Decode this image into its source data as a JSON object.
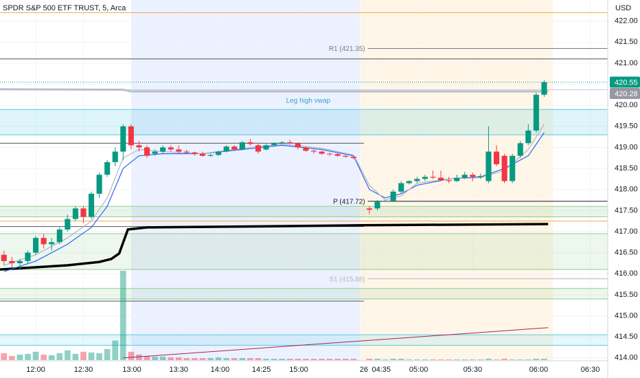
{
  "chart_data": {
    "type": "candlestick",
    "title": "SPDR S&P 500 ETF TRUST, 5, Arca",
    "currency": "USD",
    "xlim": [
      -0.5,
      76
    ],
    "ylim": [
      413.85,
      422.5
    ],
    "xticks": [
      {
        "value": 4,
        "label": "12:00"
      },
      {
        "value": 10,
        "label": "12:30"
      },
      {
        "value": 16.1,
        "label": "13:00"
      },
      {
        "value": 22,
        "label": "13:30"
      },
      {
        "value": 27.2,
        "label": "14:00"
      },
      {
        "value": 32.4,
        "label": "14:25"
      },
      {
        "value": 37.1,
        "label": "15:00"
      },
      {
        "value": 45.3,
        "label": "26"
      },
      {
        "value": 47.5,
        "label": "04:35"
      },
      {
        "value": 52.2,
        "label": "05:00"
      },
      {
        "value": 59,
        "label": "05:30"
      },
      {
        "value": 67.3,
        "label": "06:00"
      },
      {
        "value": 73.8,
        "label": "06:30"
      }
    ],
    "yticks": [
      {
        "value": 414,
        "label": "414.00"
      },
      {
        "value": 414.5,
        "label": "414.50"
      },
      {
        "value": 415,
        "label": "415.00"
      },
      {
        "value": 415.5,
        "label": "415.50"
      },
      {
        "value": 416,
        "label": "416.00"
      },
      {
        "value": 416.5,
        "label": "416.50"
      },
      {
        "value": 417,
        "label": "417.00"
      },
      {
        "value": 417.5,
        "label": "417.50"
      },
      {
        "value": 418,
        "label": "418.00"
      },
      {
        "value": 418.5,
        "label": "418.50"
      },
      {
        "value": 419,
        "label": "419.00"
      },
      {
        "value": 419.5,
        "label": "419.50"
      },
      {
        "value": 420,
        "label": "420.00"
      },
      {
        "value": 420.5,
        "label": "420.50"
      },
      {
        "value": 421,
        "label": "421.00"
      },
      {
        "value": 421.5,
        "label": "421.50"
      },
      {
        "value": 422,
        "label": "422.00"
      }
    ],
    "up_color": "#089981",
    "down_color": "#f23645",
    "x": [
      0,
      1,
      2,
      3,
      4,
      5,
      6,
      7,
      8,
      9,
      10,
      11,
      12,
      13,
      14,
      15,
      16,
      17,
      18,
      19,
      20,
      21,
      22,
      23,
      24,
      25,
      26,
      27,
      28,
      29,
      30,
      31,
      32,
      33,
      34,
      35,
      36,
      37,
      38,
      39,
      40,
      41,
      42,
      43,
      44,
      46,
      47,
      48,
      49,
      50,
      51,
      52,
      53,
      54,
      55,
      56,
      57,
      58,
      59,
      60,
      61,
      62,
      63,
      64,
      65,
      66,
      67,
      68
    ],
    "open": [
      416.45,
      416.3,
      416.25,
      416.3,
      416.5,
      416.85,
      416.7,
      416.75,
      417.05,
      417.3,
      417.55,
      417.35,
      417.9,
      418.35,
      418.65,
      418.9,
      419.5,
      419.05,
      419.0,
      418.85,
      418.9,
      419.0,
      418.95,
      418.9,
      418.88,
      418.85,
      418.8,
      418.82,
      418.9,
      419.02,
      418.95,
      419.12,
      419.05,
      418.95,
      419.05,
      419.1,
      419.12,
      419.1,
      419.0,
      418.92,
      418.9,
      418.85,
      418.84,
      418.8,
      418.78,
      417.55,
      417.55,
      417.72,
      417.72,
      417.95,
      418.15,
      418.2,
      418.25,
      418.3,
      418.28,
      418.22,
      418.2,
      418.28,
      418.35,
      418.3,
      418.2,
      418.9,
      418.8,
      418.2,
      418.8,
      419.1,
      419.4,
      420.25
    ],
    "high": [
      416.55,
      416.4,
      416.35,
      416.55,
      416.9,
      416.95,
      416.85,
      417.1,
      417.4,
      417.6,
      417.6,
      417.95,
      418.4,
      418.7,
      419.0,
      419.55,
      419.55,
      419.15,
      419.05,
      418.95,
      419.05,
      419.05,
      419.05,
      418.95,
      418.9,
      418.9,
      418.85,
      418.92,
      419.05,
      419.05,
      419.15,
      419.2,
      419.1,
      419.08,
      419.12,
      419.15,
      419.18,
      419.12,
      419.02,
      418.95,
      418.92,
      418.88,
      418.86,
      418.82,
      418.8,
      417.6,
      417.75,
      417.75,
      418.0,
      418.2,
      418.22,
      418.3,
      418.35,
      418.45,
      418.45,
      418.3,
      418.35,
      418.42,
      418.4,
      418.38,
      419.5,
      419.05,
      418.85,
      418.85,
      419.15,
      419.55,
      420.3,
      420.6
    ],
    "low": [
      416.2,
      416.15,
      416.1,
      416.25,
      416.45,
      416.6,
      416.55,
      416.7,
      417.0,
      417.25,
      417.2,
      417.3,
      417.8,
      418.3,
      418.55,
      418.7,
      418.95,
      418.9,
      418.75,
      418.8,
      418.85,
      418.9,
      418.85,
      418.85,
      418.8,
      418.78,
      418.78,
      418.8,
      418.88,
      418.92,
      418.93,
      419.05,
      418.85,
      418.93,
      419.02,
      419.08,
      419.08,
      418.95,
      418.9,
      418.85,
      418.82,
      418.8,
      418.78,
      418.75,
      418.72,
      417.42,
      417.5,
      417.7,
      417.7,
      417.9,
      418.12,
      418.15,
      418.2,
      418.25,
      418.2,
      418.15,
      418.18,
      418.25,
      418.2,
      418.25,
      418.15,
      418.55,
      418.15,
      418.15,
      418.75,
      419.05,
      419.35,
      420.2
    ],
    "close": [
      416.3,
      416.25,
      416.3,
      416.5,
      416.85,
      416.7,
      416.75,
      417.05,
      417.3,
      417.55,
      417.35,
      417.9,
      418.35,
      418.65,
      418.9,
      419.5,
      419.05,
      419.0,
      418.8,
      418.9,
      419.0,
      418.95,
      418.9,
      418.88,
      418.85,
      418.8,
      418.82,
      418.9,
      419.02,
      418.95,
      419.12,
      419.08,
      418.9,
      419.05,
      419.1,
      419.12,
      419.1,
      419.0,
      418.92,
      418.9,
      418.85,
      418.84,
      418.8,
      418.78,
      418.75,
      417.52,
      417.72,
      417.73,
      417.95,
      418.15,
      418.2,
      418.25,
      418.3,
      418.28,
      418.22,
      418.2,
      418.28,
      418.35,
      418.3,
      418.32,
      418.9,
      418.6,
      418.2,
      418.8,
      419.1,
      419.4,
      420.25,
      420.55
    ],
    "volume": [
      10,
      6,
      8,
      9,
      12,
      8,
      7,
      10,
      14,
      9,
      12,
      11,
      10,
      16,
      28,
      128,
      12,
      8,
      6,
      5,
      5,
      4,
      4,
      3,
      3,
      3,
      3,
      4,
      3,
      3,
      3,
      3,
      3,
      2,
      2,
      2,
      2,
      2,
      2,
      2,
      2,
      2,
      2,
      2,
      2,
      2,
      2,
      1,
      2,
      2,
      1,
      1,
      1,
      1,
      1,
      1,
      1,
      1,
      1,
      1,
      2,
      1,
      2,
      1,
      1,
      1,
      2,
      2
    ],
    "sessions": [
      {
        "x": [
          16,
          44.8
        ],
        "color": "rgba(41,98,255,0.09)"
      },
      {
        "x": [
          44.8,
          69.1
        ],
        "color": "rgba(255,152,0,0.09)"
      }
    ],
    "bands": [
      {
        "range": [
          419.3,
          419.9
        ],
        "color": "rgba(0,188,212,0.13)",
        "edge": "#5cc8dc"
      },
      {
        "range": [
          417.35,
          417.6
        ],
        "color": "rgba(76,175,80,0.12)",
        "edge": "#8fce92"
      },
      {
        "range": [
          416.1,
          416.95
        ],
        "color": "rgba(76,175,80,0.1)",
        "edge": "#8fce92"
      },
      {
        "range": [
          415.4,
          415.65
        ],
        "color": "rgba(76,175,80,0.1)",
        "edge": "#8fce92"
      },
      {
        "range": [
          414.3,
          414.55
        ],
        "color": "rgba(0,188,212,0.1)",
        "edge": "#5cc8dc"
      }
    ],
    "levels": [
      {
        "value": 422.2,
        "x": [
          -0.5,
          76
        ],
        "color": "#f7a440"
      },
      {
        "value": 421.1,
        "x": [
          -0.5,
          76
        ],
        "color": "#555555"
      },
      {
        "value": 420.55,
        "x": [
          -0.5,
          76
        ],
        "color": "#089981",
        "dash": true
      },
      {
        "value": 420.37,
        "x": [
          -0.5,
          76
        ],
        "color": "#c5cbd8"
      },
      {
        "value": 419.1,
        "x": [
          -0.5,
          45.3
        ],
        "color": "#555555"
      },
      {
        "value": 417.25,
        "x": [
          -0.5,
          76
        ],
        "color": "#f7a440"
      },
      {
        "value": 417.12,
        "x": [
          -0.5,
          45.3
        ],
        "color": "#555555"
      },
      {
        "value": 415.35,
        "x": [
          -0.5,
          45.3
        ],
        "color": "#555555"
      }
    ],
    "pivots": [
      {
        "label": "R1 (421.35)",
        "value": 421.35,
        "x": [
          45.8,
          76
        ],
        "color": "#787b86"
      },
      {
        "label": "P (417.72)",
        "value": 417.72,
        "x": [
          45.8,
          76
        ],
        "color": "#131722"
      },
      {
        "label": "S1 (415.88)",
        "value": 415.88,
        "x": [
          45.8,
          76
        ],
        "color": "#b2b5be"
      }
    ],
    "overlays": [
      {
        "color": "#000000",
        "width": 3.5,
        "x": [
          -0.5,
          8,
          12,
          13.5,
          14.5,
          15.6,
          18,
          30,
          45,
          68.5
        ],
        "y": [
          416.1,
          416.2,
          416.28,
          416.35,
          416.48,
          417.05,
          417.1,
          417.12,
          417.15,
          417.18
        ]
      },
      {
        "color": "#b8bfcc",
        "width": 3,
        "x": [
          -0.5,
          15,
          16,
          68.5
        ],
        "y": [
          420.38,
          420.37,
          420.33,
          420.33
        ]
      },
      {
        "color": "#2962ff",
        "width": 1.2,
        "x": [
          0,
          4,
          8,
          11,
          13,
          15,
          17,
          20,
          25,
          30,
          35,
          40,
          44,
          46,
          48,
          50,
          52,
          56,
          60,
          63,
          66,
          68
        ],
        "y": [
          416.05,
          416.3,
          416.7,
          417.1,
          417.6,
          418.5,
          418.8,
          418.85,
          418.85,
          418.95,
          419.05,
          418.95,
          418.8,
          418.0,
          417.8,
          417.9,
          418.1,
          418.25,
          418.3,
          418.5,
          418.8,
          419.35
        ]
      },
      {
        "color": "#b2b5be",
        "width": 1.2,
        "x": [
          0,
          4,
          8,
          11,
          13,
          15,
          17,
          20,
          25,
          30,
          35,
          40,
          44,
          46,
          48,
          50,
          52,
          56,
          60,
          63,
          66,
          68
        ],
        "y": [
          416.2,
          416.45,
          416.85,
          417.25,
          417.8,
          418.75,
          418.95,
          418.9,
          418.85,
          418.98,
          419.08,
          418.98,
          418.82,
          418.1,
          417.75,
          417.85,
          418.15,
          418.25,
          418.28,
          418.45,
          418.95,
          419.55
        ]
      },
      {
        "color": "#9c2755",
        "width": 1,
        "x": [
          15,
          68.5
        ],
        "y": [
          414.0,
          414.72
        ]
      }
    ],
    "annotations": [
      {
        "text": "Leg high vwap",
        "x": 38.3,
        "y": 420.1,
        "color": "#2fa6c8"
      }
    ],
    "price_labels": [
      {
        "value": 420.55,
        "color": "#089981"
      },
      {
        "value": 420.28,
        "color": "#9598a1"
      }
    ]
  }
}
